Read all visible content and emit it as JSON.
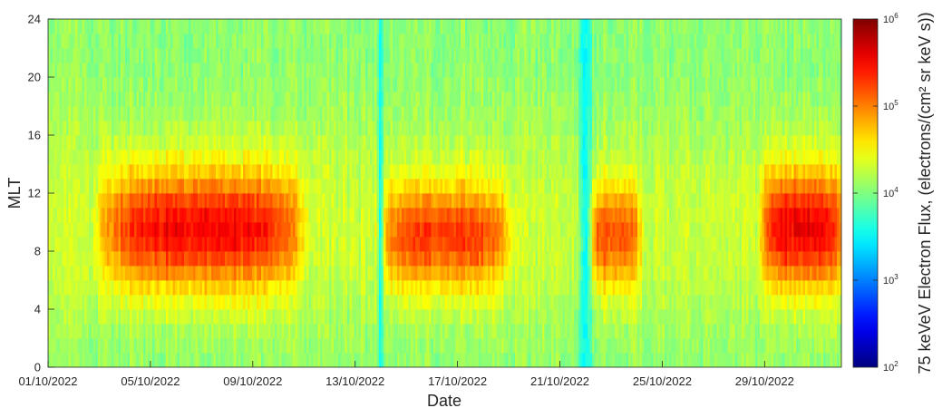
{
  "chart_data": {
    "type": "heatmap",
    "title": "",
    "xlabel": "Date",
    "ylabel": "MLT",
    "colorbar_label": "75 keVeV Electron Flux, (electrons/(cm² sr keV s))",
    "colormap": "jet",
    "color_scale": "log",
    "clim": [
      100,
      1000000
    ],
    "colorbar_ticks": [
      {
        "value": 100,
        "base": "10",
        "exp": "2"
      },
      {
        "value": 1000,
        "base": "10",
        "exp": "3"
      },
      {
        "value": 10000,
        "base": "10",
        "exp": "4"
      },
      {
        "value": 100000,
        "base": "10",
        "exp": "5"
      },
      {
        "value": 1000000,
        "base": "10",
        "exp": "6"
      }
    ],
    "x_range": [
      "2022-10-01",
      "2022-11-01"
    ],
    "x_ticks": [
      {
        "date": "2022-10-01",
        "label": "01/10/2022"
      },
      {
        "date": "2022-10-05",
        "label": "05/10/2022"
      },
      {
        "date": "2022-10-09",
        "label": "09/10/2022"
      },
      {
        "date": "2022-10-13",
        "label": "13/10/2022"
      },
      {
        "date": "2022-10-17",
        "label": "17/10/2022"
      },
      {
        "date": "2022-10-21",
        "label": "21/10/2022"
      },
      {
        "date": "2022-10-25",
        "label": "25/10/2022"
      },
      {
        "date": "2022-10-29",
        "label": "29/10/2022"
      }
    ],
    "y_range": [
      0,
      24
    ],
    "y_ticks": [
      0,
      4,
      8,
      12,
      16,
      20,
      24
    ],
    "y_bins": [
      0,
      1,
      2,
      3,
      4,
      5,
      6,
      7,
      8,
      9,
      10,
      11,
      12,
      13,
      14,
      15,
      16,
      17,
      18,
      19,
      20,
      21,
      22,
      23
    ],
    "flux_pattern": {
      "description_units": "flux in electrons/(cm^2 sr keV s)",
      "background_flux": 15000,
      "enhancements": [
        {
          "start": "2022-10-03",
          "end": "2022-10-11",
          "mlt_center": 9.5,
          "mlt_width": 4.0,
          "peak_flux": 250000
        },
        {
          "start": "2022-10-14",
          "end": "2022-10-19",
          "mlt_center": 9.0,
          "mlt_width": 3.5,
          "peak_flux": 150000
        },
        {
          "start": "2022-10-22",
          "end": "2022-10-24",
          "mlt_center": 9.0,
          "mlt_width": 3.5,
          "peak_flux": 120000
        },
        {
          "start": "2022-10-29",
          "end": "2022-11-01",
          "mlt_center": 9.5,
          "mlt_width": 4.0,
          "peak_flux": 280000
        }
      ],
      "dropouts": [
        {
          "date": "2022-10-14",
          "width_days": 0.12,
          "min_flux": 4000
        },
        {
          "date": "2022-10-22",
          "width_days": 0.25,
          "min_flux": 3000
        }
      ]
    }
  }
}
